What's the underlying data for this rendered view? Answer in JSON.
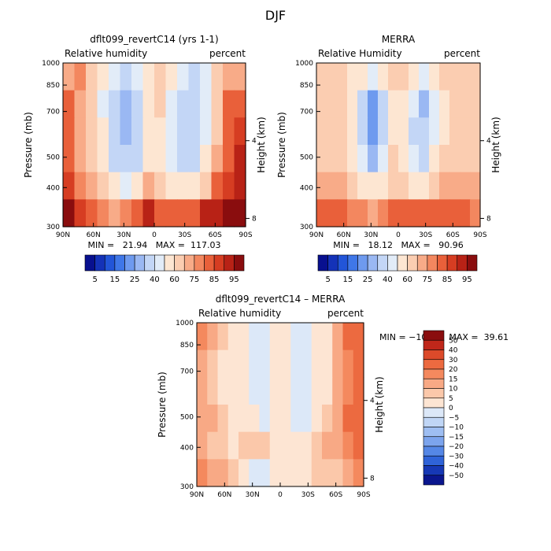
{
  "suptitle": "DJF",
  "chart_data": [
    {
      "type": "heatmap",
      "title": "dflt099_revertC14 (yrs 1-1)",
      "left_label": "Relative humidity",
      "right_label": "percent",
      "xlabel": "",
      "ylabel": "Pressure (mb)",
      "y2label": "Height (km)",
      "x_ticks": [
        "90N",
        "60N",
        "30N",
        "0",
        "30S",
        "60S",
        "90S"
      ],
      "y_ticks": [
        "1000",
        "850",
        "700",
        "500",
        "400",
        "300"
      ],
      "y_tick_values": [
        1000,
        850,
        700,
        500,
        400,
        300
      ],
      "ylim": [
        1000,
        300
      ],
      "y_scale": "log-pressure",
      "y2_ticks": [
        "4",
        "8"
      ],
      "x_range": [
        "90N",
        "90S"
      ],
      "stats": "MIN =   21.94   MAX =  117.03",
      "colorbar": {
        "labels": [
          "5",
          "15",
          "25",
          "40",
          "60",
          "75",
          "85",
          "95"
        ],
        "levels": [
          5,
          10,
          15,
          20,
          25,
          30,
          40,
          50,
          60,
          70,
          75,
          80,
          85,
          90,
          95
        ],
        "colors": [
          "#08108f",
          "#1432b8",
          "#2255d8",
          "#3f77e8",
          "#6e9aef",
          "#9ab8f3",
          "#c3d6f6",
          "#e2ecf8",
          "#fde6d2",
          "#fbcdb1",
          "#f8ab88",
          "#f3875f",
          "#e9603a",
          "#d63d22",
          "#b82216",
          "#8a0d0e"
        ]
      },
      "palette": "sequential",
      "grid": [
        [
          72,
          76,
          66,
          52,
          42,
          36,
          41,
          55,
          64,
          54,
          42,
          36,
          44,
          60,
          72,
          74
        ],
        [
          80,
          70,
          60,
          48,
          38,
          28,
          35,
          52,
          60,
          48,
          34,
          33,
          46,
          63,
          80,
          84
        ],
        [
          80,
          70,
          60,
          50,
          36,
          26,
          32,
          54,
          58,
          42,
          32,
          33,
          48,
          65,
          82,
          88
        ],
        [
          82,
          74,
          62,
          52,
          38,
          30,
          36,
          58,
          58,
          42,
          35,
          38,
          55,
          70,
          84,
          90
        ],
        [
          86,
          78,
          70,
          60,
          50,
          45,
          54,
          70,
          62,
          52,
          50,
          56,
          68,
          80,
          88,
          92
        ],
        [
          95,
          88,
          82,
          76,
          74,
          76,
          84,
          90,
          84,
          80,
          80,
          84,
          90,
          92,
          96,
          100
        ]
      ]
    },
    {
      "type": "heatmap",
      "title": "MERRA",
      "left_label": "Relative Humidity",
      "right_label": "percent",
      "xlabel": "",
      "ylabel": "Pressure (mb)",
      "y2label": "Height (km)",
      "x_ticks": [
        "90N",
        "60N",
        "30N",
        "0",
        "30S",
        "60S",
        "90S"
      ],
      "y_ticks": [
        "1000",
        "850",
        "700",
        "500",
        "400",
        "300"
      ],
      "y_tick_values": [
        1000,
        850,
        700,
        500,
        400,
        300
      ],
      "ylim": [
        1000,
        300
      ],
      "y_scale": "log-pressure",
      "y2_ticks": [
        "4",
        "8"
      ],
      "x_range": [
        "90N",
        "90S"
      ],
      "stats": "MIN =   18.12   MAX =   90.96",
      "colorbar": {
        "labels": [
          "5",
          "15",
          "25",
          "40",
          "60",
          "75",
          "85",
          "95"
        ],
        "levels": [
          5,
          10,
          15,
          20,
          25,
          30,
          40,
          50,
          60,
          70,
          75,
          80,
          85,
          90,
          95
        ],
        "colors": [
          "#08108f",
          "#1432b8",
          "#2255d8",
          "#3f77e8",
          "#6e9aef",
          "#9ab8f3",
          "#c3d6f6",
          "#e2ecf8",
          "#fde6d2",
          "#fbcdb1",
          "#f8ab88",
          "#f3875f",
          "#e9603a",
          "#d63d22",
          "#b82216",
          "#8a0d0e"
        ]
      },
      "palette": "sequential",
      "grid": [
        [
          60,
          60,
          60,
          58,
          52,
          40,
          52,
          60,
          60,
          50,
          40,
          54,
          60,
          60,
          60,
          60
        ],
        [
          62,
          62,
          60,
          54,
          38,
          22,
          38,
          58,
          56,
          42,
          28,
          42,
          58,
          62,
          62,
          62
        ],
        [
          62,
          62,
          60,
          54,
          36,
          20,
          36,
          58,
          54,
          38,
          30,
          44,
          58,
          62,
          62,
          62
        ],
        [
          62,
          62,
          60,
          56,
          40,
          26,
          40,
          60,
          56,
          42,
          38,
          50,
          60,
          62,
          62,
          62
        ],
        [
          70,
          72,
          70,
          66,
          58,
          50,
          58,
          66,
          64,
          58,
          56,
          64,
          70,
          72,
          70,
          70
        ],
        [
          80,
          82,
          80,
          78,
          76,
          74,
          78,
          82,
          82,
          80,
          80,
          82,
          84,
          84,
          80,
          78
        ]
      ]
    },
    {
      "type": "heatmap",
      "title": "dflt099_revertC14 – MERRA",
      "left_label": "Relative humidity",
      "right_label": "percent",
      "xlabel": "",
      "ylabel": "Pressure (mb)",
      "y2label": "Height (km)",
      "x_ticks": [
        "90N",
        "60N",
        "30N",
        "0",
        "30S",
        "60S",
        "90S"
      ],
      "y_ticks": [
        "1000",
        "850",
        "700",
        "500",
        "400",
        "300"
      ],
      "y_tick_values": [
        1000,
        850,
        700,
        500,
        400,
        300
      ],
      "ylim": [
        1000,
        300
      ],
      "y_scale": "log-pressure",
      "y2_ticks": [
        "4",
        "8"
      ],
      "x_range": [
        "90N",
        "90S"
      ],
      "stats": "MIN = −10.17   MAX =  39.61",
      "colorbar": {
        "labels": [
          "50",
          "40",
          "30",
          "20",
          "15",
          "10",
          "5",
          "0",
          "−5",
          "−10",
          "−15",
          "−20",
          "−30",
          "−40",
          "−50"
        ],
        "levels": [
          50,
          40,
          30,
          20,
          15,
          10,
          5,
          0,
          -5,
          -10,
          -15,
          -20,
          -30,
          -40,
          -50
        ],
        "colors": [
          "#8a0d0e",
          "#c0271a",
          "#dc4a2a",
          "#ec6a40",
          "#f4895e",
          "#f8a985",
          "#fbc8aa",
          "#fde5d3",
          "#dce8f8",
          "#c0d6f6",
          "#9ebef2",
          "#7ca4ed",
          "#5587e6",
          "#2f63d8",
          "#1638b5",
          "#0a168e"
        ]
      },
      "palette": "diverging",
      "grid": [
        [
          16,
          12,
          6,
          2,
          2,
          -2,
          -4,
          2,
          2,
          -4,
          -3,
          0,
          4,
          14,
          20,
          24
        ],
        [
          12,
          8,
          4,
          0,
          1,
          -2,
          -5,
          2,
          2,
          -4,
          -3,
          0,
          4,
          10,
          16,
          20
        ],
        [
          12,
          6,
          4,
          0,
          0,
          -1,
          -4,
          2,
          2,
          -3,
          -2,
          0,
          4,
          10,
          18,
          22
        ],
        [
          14,
          10,
          6,
          2,
          2,
          4,
          -3,
          4,
          2,
          -3,
          -1,
          2,
          8,
          14,
          20,
          24
        ],
        [
          12,
          8,
          6,
          4,
          6,
          8,
          6,
          4,
          2,
          0,
          2,
          6,
          10,
          12,
          18,
          22
        ],
        [
          18,
          12,
          10,
          6,
          2,
          -2,
          -2,
          2,
          2,
          2,
          4,
          6,
          8,
          8,
          12,
          16
        ]
      ]
    }
  ]
}
